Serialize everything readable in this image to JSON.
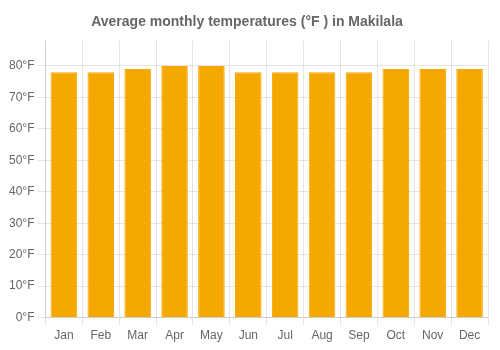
{
  "chart_data": {
    "type": "bar",
    "title": "Average monthly temperatures (°F ) in Makilala",
    "categories": [
      "Jan",
      "Feb",
      "Mar",
      "Apr",
      "May",
      "Jun",
      "Jul",
      "Aug",
      "Sep",
      "Oct",
      "Nov",
      "Dec"
    ],
    "values": [
      78,
      78,
      79,
      80,
      80,
      78,
      78,
      78,
      78,
      79,
      79,
      79
    ],
    "color": "#F5A800",
    "ylim": [
      0,
      88
    ],
    "yticks": [
      {
        "value": 0,
        "label": "0°F"
      },
      {
        "value": 10,
        "label": "10°F"
      },
      {
        "value": 20,
        "label": "20°F"
      },
      {
        "value": 30,
        "label": "30°F"
      },
      {
        "value": 40,
        "label": "40°F"
      },
      {
        "value": 50,
        "label": "50°F"
      },
      {
        "value": 60,
        "label": "60°F"
      },
      {
        "value": 70,
        "label": "70°F"
      },
      {
        "value": 80,
        "label": "80°F"
      }
    ],
    "grid": true
  }
}
